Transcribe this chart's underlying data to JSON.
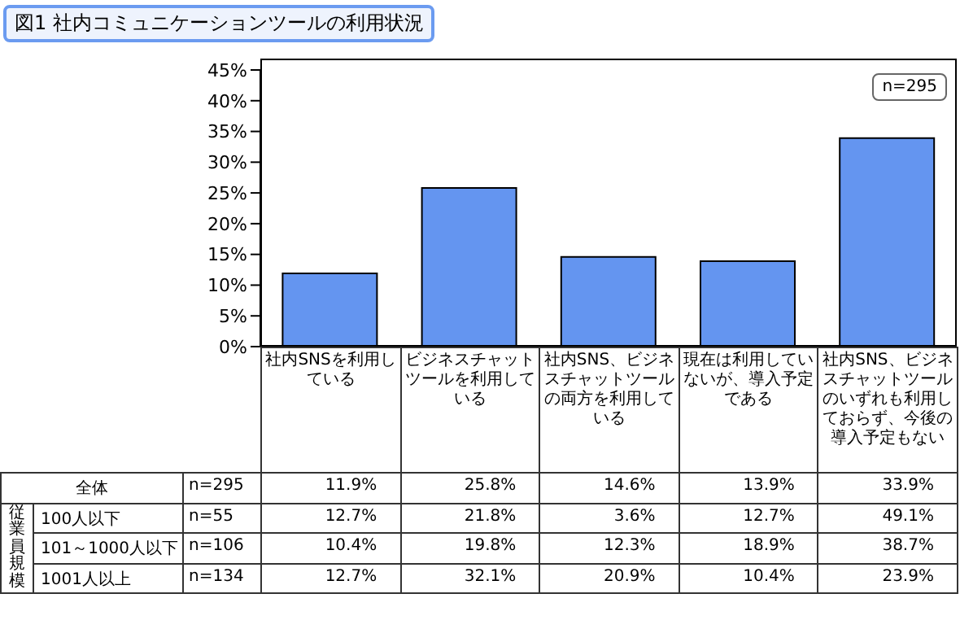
{
  "chart_data": [
    {
      "type": "bar",
      "title": "図1 社内コミュニケーションツールの利用状況",
      "categories": [
        "社内SNSを利用している",
        "ビジネスチャットツールを利用している",
        "社内SNS、ビジネスチャットツールの両方を利用している",
        "現在は利用していないが、導入予定である",
        "社内SNS、ビジネスチャットツールのいずれも利用しておらず、今後の導入予定もない"
      ],
      "series": [
        {
          "name": "全体",
          "color": "#6495f0",
          "values": [
            11.9,
            25.8,
            14.6,
            13.9,
            33.9
          ],
          "value_labels": [
            "11.9%",
            "25.8%",
            "14.6%",
            "13.9%",
            "33.9%"
          ]
        }
      ],
      "ylim": [
        0,
        45
      ],
      "yticks": [
        {
          "value": 0,
          "label": "0%"
        },
        {
          "value": 5,
          "label": "5%"
        },
        {
          "value": 10,
          "label": "10%"
        },
        {
          "value": 15,
          "label": "15%"
        },
        {
          "value": 20,
          "label": "20%"
        },
        {
          "value": 25,
          "label": "25%"
        },
        {
          "value": 30,
          "label": "30%"
        },
        {
          "value": 35,
          "label": "35%"
        },
        {
          "value": 40,
          "label": "40%"
        },
        {
          "value": 45,
          "label": "45%"
        }
      ],
      "annotations": [
        "n=295",
        "n=295"
      ]
    },
    {
      "type": "heatmap",
      "categories": [
        null,
        null,
        null,
        null,
        null
      ],
      "y_categories": [
        "100人以下",
        "101～1000人以下",
        "1001人以上"
      ],
      "cells": [
        [
          12.7,
          21.8,
          3.6,
          12.7,
          49.1
        ],
        [
          10.4,
          19.8,
          12.3,
          18.9,
          38.7
        ],
        [
          12.7,
          32.1,
          20.9,
          10.4,
          23.9
        ]
      ],
      "cell_labels": [
        [
          "12.7%",
          "21.8%",
          "3.6%",
          "12.7%",
          "49.1%"
        ],
        [
          "10.4%",
          "19.8%",
          "12.3%",
          "18.9%",
          "38.7%"
        ],
        [
          "12.7%",
          "32.1%",
          "20.9%",
          "10.4%",
          "23.9%"
        ]
      ],
      "annotations": [
        "従業員規模",
        "n=55",
        "n=106",
        "n=134"
      ]
    }
  ]
}
